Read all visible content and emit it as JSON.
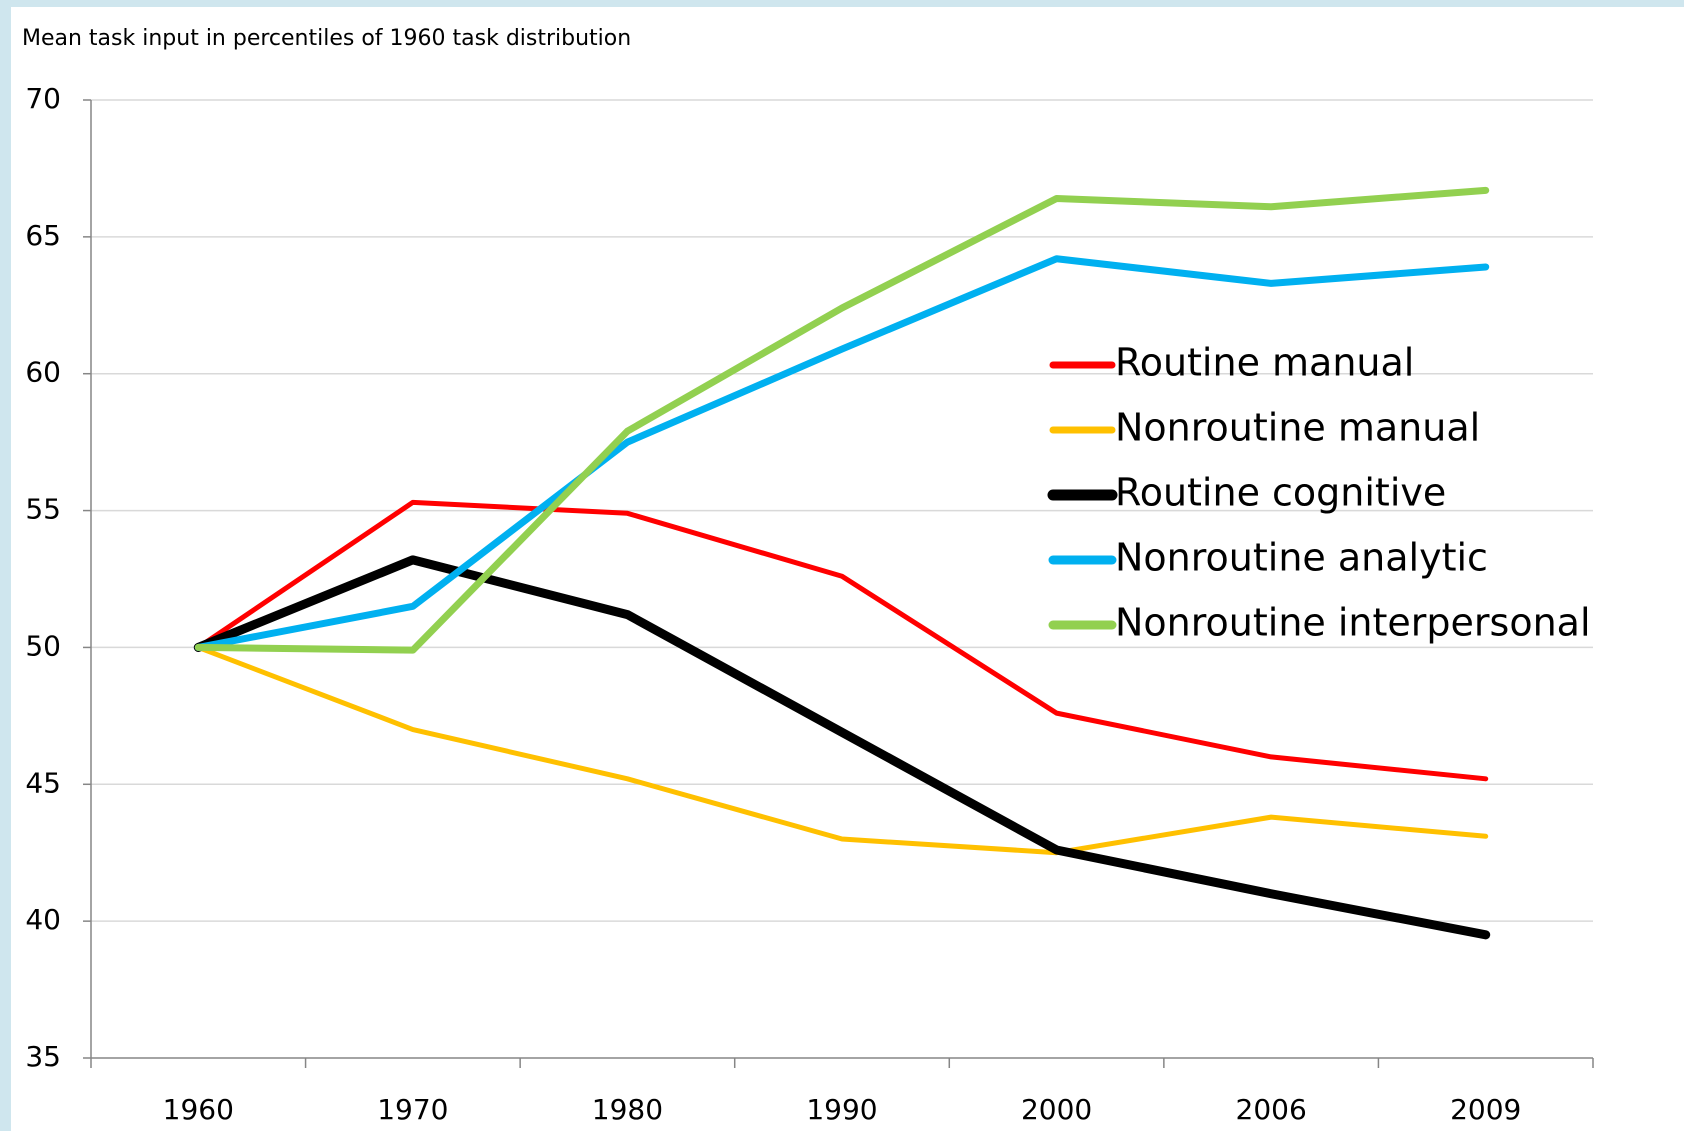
{
  "chart_data": {
    "type": "line",
    "title": "Mean task input in percentiles of 1960 task distribution",
    "categories": [
      "1960",
      "1970",
      "1980",
      "1990",
      "2000",
      "2006",
      "2009"
    ],
    "series": [
      {
        "name": "Routine manual",
        "color": "#ff0000",
        "line_width": 5,
        "values": [
          50,
          55.3,
          54.9,
          52.6,
          47.6,
          46.0,
          45.2
        ]
      },
      {
        "name": "Nonroutine manual",
        "color": "#ffc000",
        "line_width": 5,
        "values": [
          50,
          47.0,
          45.2,
          43.0,
          42.5,
          43.8,
          43.1
        ]
      },
      {
        "name": "Routine cognitive",
        "color": "#000000",
        "line_width": 9,
        "values": [
          50,
          53.2,
          51.2,
          46.9,
          42.6,
          41.0,
          39.5
        ]
      },
      {
        "name": "Nonroutine analytic",
        "color": "#00b0f0",
        "line_width": 7,
        "values": [
          50,
          51.5,
          57.5,
          60.9,
          64.2,
          63.3,
          63.9
        ]
      },
      {
        "name": "Nonroutine interpersonal",
        "color": "#92d050",
        "line_width": 7,
        "values": [
          50,
          49.9,
          57.9,
          62.4,
          66.4,
          66.1,
          66.7
        ]
      }
    ],
    "ylim": [
      35,
      70
    ],
    "yticks": [
      35,
      40,
      45,
      50,
      55,
      60,
      65,
      70
    ],
    "grid": true,
    "legend": "right"
  }
}
